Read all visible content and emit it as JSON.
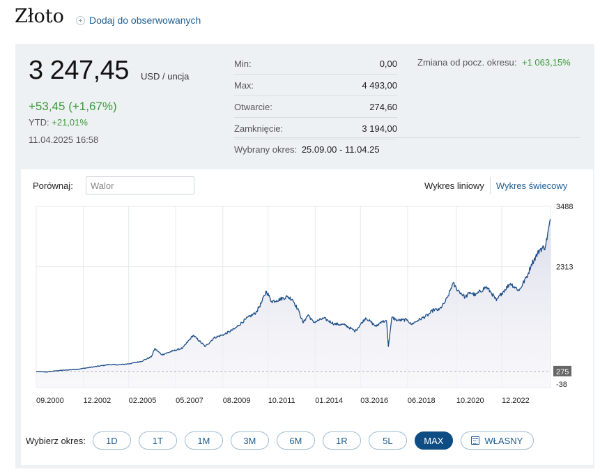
{
  "header": {
    "title": "Złoto",
    "watch_label": "Dodaj do obserwowanych"
  },
  "quote": {
    "price": "3 247,45",
    "unit": "USD / uncja",
    "change": "+53,45 (+1,67%)",
    "ytd_label": "YTD:",
    "ytd_value": "+21,01%",
    "timestamp": "11.04.2025 16:58"
  },
  "stats": [
    {
      "label": "Min:",
      "value": "0,00"
    },
    {
      "label": "Max:",
      "value": "4 493,00"
    },
    {
      "label": "Otwarcie:",
      "value": "274,60"
    },
    {
      "label": "Zamknięcie:",
      "value": "3 194,00"
    }
  ],
  "period": {
    "label": "Wybrany okres:",
    "value": "25.09.00 - 11.04.25"
  },
  "change_since": {
    "label": "Zmiana od pocz. okresu:",
    "value": "+1 063,15%"
  },
  "compare": {
    "label": "Porównaj:",
    "placeholder": "Walor"
  },
  "chart_toggle": {
    "line": "Wykres liniowy",
    "candle": "Wykres świecowy"
  },
  "period_selector": {
    "label": "Wybierz okres:",
    "buttons": [
      {
        "label": "1D"
      },
      {
        "label": "1T"
      },
      {
        "label": "1M"
      },
      {
        "label": "3M"
      },
      {
        "label": "6M"
      },
      {
        "label": "1R"
      },
      {
        "label": "5L"
      },
      {
        "label": "MAX",
        "active": true
      },
      {
        "label": "WŁASNY",
        "icon": "calendar-icon"
      }
    ]
  },
  "colors": {
    "line": "#1d4e89",
    "area_top": "#dcdceb",
    "positive": "#3d9a3a",
    "link": "#1d5d90",
    "active_button": "#0e4d84",
    "panel_bg": "#eef1f4"
  },
  "chart_data": {
    "type": "area",
    "x_tick_labels": [
      "09.2000",
      "12.2002",
      "02.2005",
      "05.2007",
      "08.2009",
      "10.2011",
      "01.2014",
      "03.2016",
      "06.2018",
      "10.2020",
      "12.2022"
    ],
    "y_tick_labels": [
      "3488",
      "2313"
    ],
    "ylim": [
      -38,
      3488
    ],
    "y_axis_position": "right",
    "baseline_value": 275,
    "baseline_label": "275",
    "bottom_label": "-38",
    "grid": true,
    "series": [
      {
        "x": [
          "2000-09",
          "2001-03",
          "2001-09",
          "2002-03",
          "2002-09",
          "2003-03",
          "2003-09",
          "2004-03",
          "2004-09",
          "2005-03",
          "2005-09",
          "2006-03",
          "2006-05",
          "2006-09",
          "2007-03",
          "2007-09",
          "2008-03",
          "2008-10",
          "2009-03",
          "2009-09",
          "2010-03",
          "2010-09",
          "2011-03",
          "2011-06",
          "2011-09",
          "2011-12",
          "2012-03",
          "2012-09",
          "2012-12",
          "2013-04",
          "2013-06",
          "2013-09",
          "2013-12",
          "2014-06",
          "2014-12",
          "2015-06",
          "2015-12",
          "2016-06",
          "2016-12",
          "2017-03",
          "2017-06",
          "2017-07",
          "2017-09",
          "2017-12",
          "2018-06",
          "2018-08",
          "2018-12",
          "2019-06",
          "2019-09",
          "2019-12",
          "2020-03",
          "2020-05",
          "2020-08",
          "2020-10",
          "2021-03",
          "2021-06",
          "2021-09",
          "2022-03",
          "2022-06",
          "2022-09",
          "2022-12",
          "2023-05",
          "2023-10",
          "2024-03",
          "2024-05",
          "2024-10",
          "2025-01",
          "2025-04"
        ],
        "y": [
          275,
          265,
          290,
          305,
          320,
          350,
          380,
          410,
          405,
          430,
          470,
          560,
          720,
          600,
          670,
          730,
          980,
          760,
          930,
          1000,
          1110,
          1290,
          1420,
          1600,
          1840,
          1640,
          1660,
          1730,
          1680,
          1420,
          1220,
          1380,
          1230,
          1310,
          1200,
          1180,
          1060,
          1320,
          1150,
          1250,
          1250,
          760,
          1330,
          1270,
          1280,
          1190,
          1270,
          1380,
          1480,
          1470,
          1600,
          1720,
          1990,
          1890,
          1720,
          1810,
          1760,
          1920,
          1810,
          1650,
          1800,
          1990,
          1850,
          2160,
          2360,
          2650,
          2700,
          3240
        ]
      }
    ]
  }
}
